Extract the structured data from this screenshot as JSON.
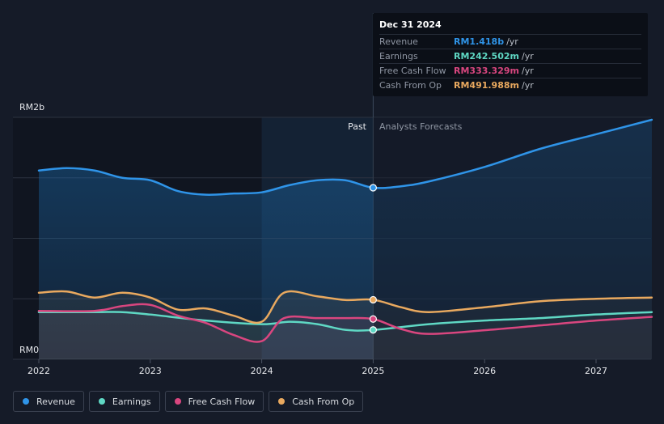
{
  "chart_data": {
    "type": "line",
    "y_axis": {
      "top_label": "RM2b",
      "bottom_label": "RM0",
      "ylim": [
        0,
        2.0
      ],
      "unit": "RM billions"
    },
    "x_ticks": [
      "2022",
      "2023",
      "2024",
      "2025",
      "2026",
      "2027"
    ],
    "x_range": [
      2022.0,
      2027.5
    ],
    "divider_x": 2025.0,
    "past_label": "Past",
    "forecast_label": "Analysts Forecasts",
    "highlight_x": 2025.0,
    "series": [
      {
        "name": "Revenue",
        "color": "#2f94e8",
        "points": [
          [
            2022.0,
            1.56
          ],
          [
            2022.25,
            1.58
          ],
          [
            2022.5,
            1.56
          ],
          [
            2022.75,
            1.5
          ],
          [
            2023.0,
            1.48
          ],
          [
            2023.25,
            1.39
          ],
          [
            2023.5,
            1.36
          ],
          [
            2023.75,
            1.37
          ],
          [
            2024.0,
            1.38
          ],
          [
            2024.25,
            1.44
          ],
          [
            2024.5,
            1.48
          ],
          [
            2024.75,
            1.48
          ],
          [
            2025.0,
            1.418
          ],
          [
            2025.25,
            1.43
          ],
          [
            2025.5,
            1.47
          ],
          [
            2026.0,
            1.59
          ],
          [
            2026.5,
            1.74
          ],
          [
            2027.0,
            1.86
          ],
          [
            2027.5,
            1.98
          ]
        ]
      },
      {
        "name": "Earnings",
        "color": "#5fd8c4",
        "points": [
          [
            2022.0,
            0.39
          ],
          [
            2022.5,
            0.39
          ],
          [
            2022.75,
            0.39
          ],
          [
            2023.0,
            0.37
          ],
          [
            2023.5,
            0.32
          ],
          [
            2024.0,
            0.29
          ],
          [
            2024.25,
            0.31
          ],
          [
            2024.5,
            0.29
          ],
          [
            2024.75,
            0.243
          ],
          [
            2025.0,
            0.2425
          ],
          [
            2025.5,
            0.29
          ],
          [
            2026.0,
            0.32
          ],
          [
            2026.5,
            0.34
          ],
          [
            2027.0,
            0.37
          ],
          [
            2027.5,
            0.39
          ]
        ]
      },
      {
        "name": "Free Cash Flow",
        "color": "#d9467f",
        "points": [
          [
            2022.0,
            0.4
          ],
          [
            2022.5,
            0.4
          ],
          [
            2022.75,
            0.44
          ],
          [
            2023.0,
            0.45
          ],
          [
            2023.25,
            0.36
          ],
          [
            2023.5,
            0.3
          ],
          [
            2023.75,
            0.2
          ],
          [
            2024.0,
            0.15
          ],
          [
            2024.2,
            0.34
          ],
          [
            2024.5,
            0.34
          ],
          [
            2024.75,
            0.34
          ],
          [
            2025.0,
            0.333
          ],
          [
            2025.25,
            0.25
          ],
          [
            2025.5,
            0.21
          ],
          [
            2026.0,
            0.24
          ],
          [
            2026.5,
            0.28
          ],
          [
            2027.0,
            0.32
          ],
          [
            2027.5,
            0.35
          ]
        ]
      },
      {
        "name": "Cash From Op",
        "color": "#e9a95f",
        "points": [
          [
            2022.0,
            0.55
          ],
          [
            2022.25,
            0.56
          ],
          [
            2022.5,
            0.51
          ],
          [
            2022.75,
            0.55
          ],
          [
            2023.0,
            0.51
          ],
          [
            2023.25,
            0.41
          ],
          [
            2023.5,
            0.42
          ],
          [
            2023.75,
            0.36
          ],
          [
            2024.0,
            0.31
          ],
          [
            2024.2,
            0.55
          ],
          [
            2024.5,
            0.52
          ],
          [
            2024.75,
            0.49
          ],
          [
            2025.0,
            0.492
          ],
          [
            2025.25,
            0.43
          ],
          [
            2025.5,
            0.39
          ],
          [
            2026.0,
            0.43
          ],
          [
            2026.5,
            0.48
          ],
          [
            2027.0,
            0.5
          ],
          [
            2027.5,
            0.51
          ]
        ]
      }
    ]
  },
  "tooltip": {
    "date": "Dec 31 2024",
    "rows": [
      {
        "label": "Revenue",
        "value": "RM1.418b",
        "unit": "/yr",
        "color": "#2f94e8"
      },
      {
        "label": "Earnings",
        "value": "RM242.502m",
        "unit": "/yr",
        "color": "#5fd8c4"
      },
      {
        "label": "Free Cash Flow",
        "value": "RM333.329m",
        "unit": "/yr",
        "color": "#d9467f"
      },
      {
        "label": "Cash From Op",
        "value": "RM491.988m",
        "unit": "/yr",
        "color": "#e9a95f"
      }
    ]
  },
  "legend": [
    {
      "label": "Revenue",
      "color": "#2f94e8"
    },
    {
      "label": "Earnings",
      "color": "#5fd8c4"
    },
    {
      "label": "Free Cash Flow",
      "color": "#d9467f"
    },
    {
      "label": "Cash From Op",
      "color": "#e9a95f"
    }
  ]
}
